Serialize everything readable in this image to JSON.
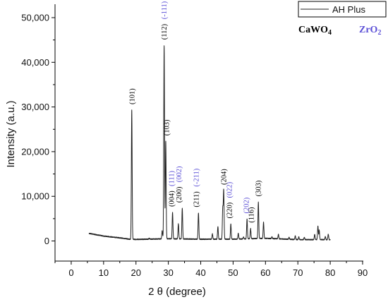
{
  "chart_data": {
    "type": "line",
    "xlabel": "2 θ (degree)",
    "ylabel": "Intensity (a.u.)",
    "xlim": [
      -5,
      90
    ],
    "ylim": [
      -4500,
      53000
    ],
    "xticks": [
      0,
      10,
      20,
      30,
      40,
      50,
      60,
      70,
      80,
      90
    ],
    "yticks": [
      0,
      10000,
      20000,
      30000,
      40000,
      50000
    ],
    "ytick_labels": [
      "0",
      "10,000",
      "20,000",
      "30,000",
      "40,000",
      "50,000"
    ],
    "grid": false,
    "legend": {
      "position": "top-right",
      "entries": [
        "AH Plus"
      ]
    },
    "colors": {
      "line": "#222222",
      "axis": "#000000",
      "calcium_tungstate": "#000000",
      "zirconia": "#5b4fd6"
    },
    "series": [
      {
        "name": "AH Plus",
        "baseline": [
          [
            5.5,
            1700
          ],
          [
            10,
            1100
          ],
          [
            15,
            700
          ],
          [
            18,
            400
          ],
          [
            20,
            350
          ],
          [
            30,
            500
          ],
          [
            40,
            400
          ],
          [
            50,
            400
          ],
          [
            60,
            600
          ],
          [
            70,
            300
          ],
          [
            80,
            300
          ]
        ],
        "peaks": [
          [
            18.7,
            29300
          ],
          [
            24.1,
            600
          ],
          [
            28.1,
            2300
          ],
          [
            28.7,
            43800
          ],
          [
            29.2,
            22300
          ],
          [
            31.3,
            6400
          ],
          [
            33.1,
            3900
          ],
          [
            34.3,
            7300
          ],
          [
            39.3,
            6300
          ],
          [
            43.6,
            1600
          ],
          [
            45.3,
            3200
          ],
          [
            46.8,
            7300
          ],
          [
            47.1,
            11300
          ],
          [
            49.3,
            3800
          ],
          [
            51.6,
            1700
          ],
          [
            53.2,
            900
          ],
          [
            54.3,
            4900
          ],
          [
            55.4,
            2800
          ],
          [
            57.8,
            8700
          ],
          [
            59.4,
            4200
          ],
          [
            62.0,
            900
          ],
          [
            64.0,
            1500
          ],
          [
            67.3,
            800
          ],
          [
            69.2,
            1100
          ],
          [
            70.3,
            900
          ],
          [
            72.0,
            800
          ],
          [
            75.2,
            1500
          ],
          [
            76.2,
            3300
          ],
          [
            76.6,
            2400
          ],
          [
            78.5,
            1000
          ],
          [
            79.4,
            1500
          ]
        ]
      }
    ],
    "annotations": [
      {
        "text": "(101)",
        "x": 18.7,
        "y": 29300,
        "phase": "CaWO4"
      },
      {
        "text": "(112)",
        "x": 28.7,
        "y": 43800,
        "phase": "CaWO4"
      },
      {
        "text": "(-111)",
        "x": 28.7,
        "y": 43800,
        "phase": "ZrO2"
      },
      {
        "text": "(103)",
        "x": 29.4,
        "y": 22300,
        "phase": "CaWO4"
      },
      {
        "text": "(004)",
        "x": 30.9,
        "y": 6400,
        "phase": "CaWO4"
      },
      {
        "text": "(111)",
        "x": 30.9,
        "y": 6400,
        "phase": "ZrO2"
      },
      {
        "text": "(200)",
        "x": 33.2,
        "y": 7300,
        "phase": "CaWO4"
      },
      {
        "text": "(002)",
        "x": 33.2,
        "y": 7300,
        "phase": "ZrO2"
      },
      {
        "text": "(211)",
        "x": 38.6,
        "y": 6300,
        "phase": "CaWO4"
      },
      {
        "text": "(-211)",
        "x": 38.6,
        "y": 6300,
        "phase": "ZrO2"
      },
      {
        "text": "(204)",
        "x": 47.1,
        "y": 11300,
        "phase": "CaWO4"
      },
      {
        "text": "(220)",
        "x": 48.8,
        "y": 3800,
        "phase": "CaWO4"
      },
      {
        "text": "(022)",
        "x": 48.8,
        "y": 3800,
        "phase": "ZrO2"
      },
      {
        "text": "(202)",
        "x": 54.0,
        "y": 4900,
        "phase": "ZrO2"
      },
      {
        "text": "(116)",
        "x": 55.6,
        "y": 2800,
        "phase": "CaWO4"
      },
      {
        "text": "(303)",
        "x": 57.8,
        "y": 8700,
        "phase": "CaWO4"
      }
    ],
    "phase_labels": [
      {
        "text": "CaWO4",
        "main": "CaWO",
        "sub": "4",
        "color": "#000000"
      },
      {
        "text": "ZrO2",
        "main": "ZrO",
        "sub": "2",
        "color": "#5b4fd6"
      }
    ]
  }
}
